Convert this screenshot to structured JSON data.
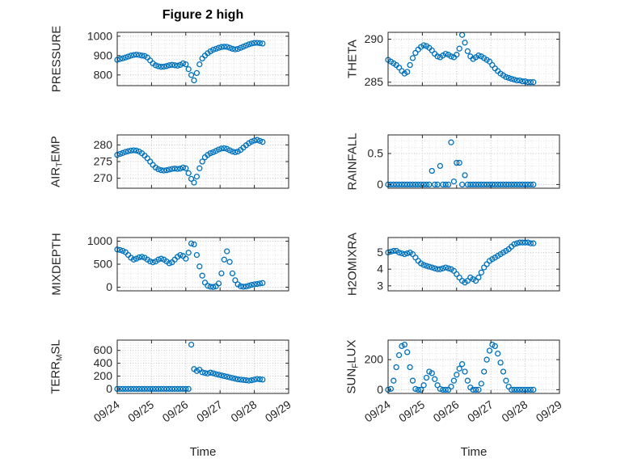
{
  "title": "Figure 2 high",
  "accent_color": "#0072BD",
  "axis_color": "#262626",
  "x_axis": {
    "label": "Time",
    "xlim": [
      0,
      5
    ],
    "ticks": [
      0,
      1,
      2,
      3,
      4,
      5
    ],
    "tick_labels": [
      "09/24",
      "09/25",
      "09/26",
      "09/27",
      "09/28",
      "09/29"
    ]
  },
  "x_days": [
    0,
    0.08,
    0.16,
    0.24,
    0.32,
    0.4,
    0.48,
    0.56,
    0.64,
    0.72,
    0.8,
    0.88,
    0.96,
    1.04,
    1.12,
    1.2,
    1.28,
    1.36,
    1.44,
    1.52,
    1.6,
    1.68,
    1.76,
    1.84,
    1.92,
    2,
    2.08,
    2.16,
    2.24,
    2.32,
    2.4,
    2.48,
    2.56,
    2.64,
    2.72,
    2.8,
    2.88,
    2.96,
    3.04,
    3.12,
    3.2,
    3.28,
    3.36,
    3.44,
    3.52,
    3.6,
    3.68,
    3.76,
    3.84,
    3.92,
    4,
    4.08,
    4.16,
    4.24
  ],
  "chart_data": [
    {
      "type": "scatter",
      "name": "PRESSURE",
      "marker": "open-circle",
      "ylabel_parts": [
        {
          "t": "PRESSURE"
        }
      ],
      "ylim": [
        745,
        1020
      ],
      "yticks": [
        800,
        900,
        1000
      ],
      "values": [
        878,
        882,
        886,
        890,
        895,
        900,
        903,
        905,
        903,
        900,
        898,
        890,
        875,
        860,
        850,
        845,
        842,
        843,
        846,
        850,
        852,
        850,
        848,
        852,
        860,
        855,
        830,
        800,
        772,
        810,
        855,
        885,
        900,
        912,
        922,
        930,
        935,
        940,
        944,
        946,
        945,
        940,
        935,
        932,
        934,
        940,
        946,
        952,
        958,
        962,
        965,
        966,
        964,
        962
      ]
    },
    {
      "type": "scatter",
      "name": "THETA",
      "marker": "open-circle",
      "ylabel_parts": [
        {
          "t": "THETA"
        }
      ],
      "ylim": [
        284.6,
        290.8
      ],
      "yticks": [
        285,
        290
      ],
      "values": [
        287.6,
        287.4,
        287.2,
        287,
        286.7,
        286.3,
        286,
        286.2,
        287,
        287.8,
        288.4,
        288.8,
        289.1,
        289.3,
        289.2,
        289,
        288.7,
        288.3,
        288,
        287.9,
        288.1,
        288.3,
        288.2,
        288,
        287.9,
        288.2,
        288.9,
        290.5,
        289.6,
        288.6,
        288,
        287.7,
        287.9,
        288.1,
        288,
        287.8,
        287.6,
        287.4,
        287,
        286.6,
        286.3,
        286,
        285.8,
        285.6,
        285.5,
        285.4,
        285.3,
        285.2,
        285.2,
        285.1,
        285.1,
        285,
        285,
        285
      ]
    },
    {
      "type": "scatter",
      "name": "AIR_TEMP",
      "marker": "open-circle",
      "ylabel_parts": [
        {
          "t": "AIR"
        },
        {
          "t": "T",
          "sub": true
        },
        {
          "t": "EMP"
        }
      ],
      "ylim": [
        267,
        283
      ],
      "yticks": [
        270,
        275,
        280
      ],
      "values": [
        277,
        277.3,
        277.6,
        277.9,
        278.1,
        278.3,
        278.4,
        278.3,
        278,
        277.5,
        276.8,
        276,
        275,
        274,
        273.2,
        272.7,
        272.4,
        272.3,
        272.4,
        272.6,
        272.8,
        272.9,
        272.8,
        272.9,
        273.2,
        273,
        271.5,
        269.8,
        268.7,
        270.5,
        273,
        275,
        276.3,
        277,
        277.5,
        277.8,
        278.2,
        278.6,
        278.9,
        279,
        278.8,
        278.4,
        278,
        277.8,
        278,
        278.5,
        279.2,
        279.9,
        280.5,
        281,
        281.3,
        281.5,
        281.2,
        280.9
      ]
    },
    {
      "type": "scatter",
      "name": "RAINFALL",
      "marker": "open-circle",
      "ylabel_parts": [
        {
          "t": "RAINFALL"
        }
      ],
      "ylim": [
        -0.06,
        0.8
      ],
      "yticks": [
        0,
        0.5
      ],
      "values": [
        0,
        0,
        0,
        0,
        0,
        0,
        0,
        0,
        0,
        0,
        0,
        0,
        0,
        0,
        0,
        0,
        0.22,
        0,
        0,
        0.3,
        0,
        0,
        0,
        0.68,
        0.05,
        0.35,
        0.35,
        0,
        0.15,
        0,
        0,
        0,
        0,
        0,
        0,
        0,
        0,
        0,
        0,
        0,
        0,
        0,
        0,
        0,
        0,
        0,
        0,
        0,
        0,
        0,
        0,
        0,
        0,
        0
      ]
    },
    {
      "type": "scatter",
      "name": "MIXDEPTH",
      "marker": "open-circle",
      "ylabel_parts": [
        {
          "t": "MIXDEPTH"
        }
      ],
      "ylim": [
        -80,
        1080
      ],
      "yticks": [
        0,
        500,
        1000
      ],
      "values": [
        820,
        810,
        790,
        760,
        700,
        640,
        600,
        620,
        650,
        660,
        640,
        600,
        560,
        540,
        560,
        600,
        620,
        600,
        560,
        520,
        540,
        600,
        660,
        700,
        680,
        620,
        750,
        950,
        930,
        700,
        450,
        250,
        100,
        30,
        10,
        5,
        20,
        80,
        300,
        600,
        780,
        550,
        300,
        150,
        60,
        20,
        10,
        15,
        30,
        50,
        60,
        70,
        80,
        90
      ]
    },
    {
      "type": "scatter",
      "name": "H2OMIXRA",
      "marker": "open-circle",
      "ylabel_parts": [
        {
          "t": "H2OMIXRA"
        }
      ],
      "ylim": [
        2.7,
        5.9
      ],
      "yticks": [
        3,
        4,
        5
      ],
      "values": [
        5,
        5.05,
        5.1,
        5.1,
        5,
        4.95,
        4.9,
        4.95,
        5,
        4.9,
        4.7,
        4.5,
        4.35,
        4.25,
        4.2,
        4.15,
        4.1,
        4.05,
        4,
        4,
        4.05,
        4.1,
        4.05,
        4,
        3.9,
        3.7,
        3.5,
        3.3,
        3.2,
        3.3,
        3.5,
        3.4,
        3.3,
        3.5,
        3.8,
        4.1,
        4.3,
        4.5,
        4.6,
        4.7,
        4.8,
        4.9,
        5,
        5.1,
        5.2,
        5.35,
        5.5,
        5.55,
        5.6,
        5.6,
        5.6,
        5.6,
        5.55,
        5.55
      ]
    },
    {
      "type": "scatter",
      "name": "TERR_MSL",
      "marker": "open-circle",
      "ylabel_parts": [
        {
          "t": "TERR"
        },
        {
          "t": "M",
          "sub": true
        },
        {
          "t": "SL"
        }
      ],
      "ylim": [
        -70,
        760
      ],
      "yticks": [
        0,
        200,
        400,
        600
      ],
      "values": [
        0,
        0,
        0,
        0,
        0,
        0,
        0,
        0,
        0,
        0,
        0,
        0,
        0,
        0,
        0,
        0,
        0,
        0,
        0,
        0,
        0,
        0,
        0,
        0,
        0,
        0,
        0,
        690,
        310,
        280,
        300,
        260,
        250,
        240,
        255,
        245,
        230,
        220,
        210,
        200,
        190,
        180,
        170,
        160,
        150,
        145,
        140,
        135,
        130,
        135,
        145,
        155,
        150,
        145
      ]
    },
    {
      "type": "scatter",
      "name": "SUN_FLUX",
      "marker": "open-circle",
      "ylabel_parts": [
        {
          "t": "SUN"
        },
        {
          "t": "F",
          "sub": true
        },
        {
          "t": "LUX"
        }
      ],
      "ylim": [
        -25,
        330
      ],
      "yticks": [
        0,
        200
      ],
      "values": [
        0,
        5,
        60,
        150,
        230,
        290,
        300,
        250,
        150,
        60,
        5,
        0,
        0,
        30,
        80,
        120,
        110,
        70,
        30,
        5,
        0,
        0,
        0,
        20,
        60,
        100,
        140,
        170,
        120,
        60,
        15,
        0,
        0,
        0,
        40,
        120,
        200,
        260,
        300,
        290,
        240,
        180,
        120,
        60,
        20,
        0,
        0,
        0,
        0,
        0,
        0,
        0,
        0,
        0
      ]
    }
  ]
}
